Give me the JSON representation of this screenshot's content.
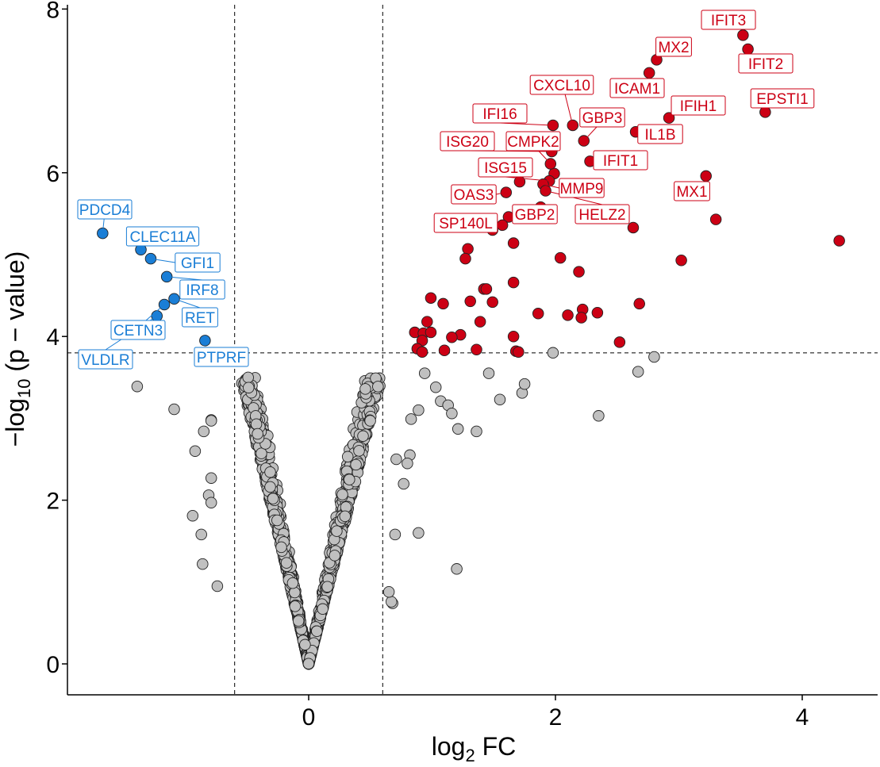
{
  "chart_data": {
    "type": "scatter",
    "title": "",
    "xlabel": "log2 FC",
    "ylabel": "-log10 (p - value)",
    "xlim": [
      -1.95,
      4.6
    ],
    "ylim": [
      -0.95,
      8.1
    ],
    "x_ticks": [
      0,
      2,
      4
    ],
    "y_ticks": [
      0,
      2,
      4,
      6,
      8
    ],
    "fc_threshold": [
      -0.6,
      0.6
    ],
    "p_threshold": 3.8,
    "grid": false,
    "legend": "none",
    "colors": {
      "up": "#cc0014",
      "down": "#1a7ed6",
      "ns": "#c0c0c0",
      "outline": "#222222"
    },
    "labeled_down": [
      {
        "gene": "PDCD4",
        "x": -1.67,
        "y": 5.26
      },
      {
        "gene": "CLEC11A",
        "x": -1.36,
        "y": 5.06
      },
      {
        "gene": "GFI1",
        "x": -1.28,
        "y": 4.95
      },
      {
        "gene": "IRF8",
        "x": -1.15,
        "y": 4.73
      },
      {
        "gene": "RET",
        "x": -1.09,
        "y": 4.46
      },
      {
        "gene": "CETN3",
        "x": -1.17,
        "y": 4.39
      },
      {
        "gene": "VLDLR",
        "x": -1.23,
        "y": 4.25
      },
      {
        "gene": "PTPRF",
        "x": -0.84,
        "y": 3.95
      }
    ],
    "labeled_up": [
      {
        "gene": "IFIT3",
        "x": 3.52,
        "y": 7.68
      },
      {
        "gene": "IFIT2",
        "x": 3.56,
        "y": 7.51
      },
      {
        "gene": "MX2",
        "x": 2.82,
        "y": 7.38
      },
      {
        "gene": "ICAM1",
        "x": 2.76,
        "y": 7.22
      },
      {
        "gene": "EPSTI1",
        "x": 3.7,
        "y": 6.74
      },
      {
        "gene": "IFIH1",
        "x": 2.92,
        "y": 6.67
      },
      {
        "gene": "CXCL10",
        "x": 2.14,
        "y": 6.58
      },
      {
        "gene": "IFI16",
        "x": 1.98,
        "y": 6.58
      },
      {
        "gene": "GBP3",
        "x": 2.23,
        "y": 6.39
      },
      {
        "gene": "IL1B",
        "x": 2.65,
        "y": 6.5
      },
      {
        "gene": "ISG20",
        "x": 1.97,
        "y": 6.26
      },
      {
        "gene": "CMPK2",
        "x": 1.96,
        "y": 6.11
      },
      {
        "gene": "IFIT1",
        "x": 2.28,
        "y": 6.14
      },
      {
        "gene": "ISG15",
        "x": 1.95,
        "y": 5.9
      },
      {
        "gene": "MX1",
        "x": 3.22,
        "y": 5.96
      },
      {
        "gene": "MMP9",
        "x": 1.9,
        "y": 5.86
      },
      {
        "gene": "OAS3",
        "x": 1.6,
        "y": 5.76
      },
      {
        "gene": "GBP2",
        "x": 1.88,
        "y": 5.58
      },
      {
        "gene": "HELZ2",
        "x": 1.92,
        "y": 5.78
      },
      {
        "gene": "SP140L",
        "x": 1.57,
        "y": 5.36
      }
    ],
    "unlabeled_up": [
      [
        1.71,
        5.89
      ],
      [
        1.99,
        5.99
      ],
      [
        1.62,
        5.46
      ],
      [
        3.3,
        5.43
      ],
      [
        2.63,
        5.33
      ],
      [
        1.49,
        5.3
      ],
      [
        4.3,
        5.17
      ],
      [
        1.66,
        5.14
      ],
      [
        1.29,
        5.07
      ],
      [
        1.27,
        4.95
      ],
      [
        2.04,
        4.96
      ],
      [
        3.02,
        4.93
      ],
      [
        2.19,
        4.79
      ],
      [
        1.42,
        4.58
      ],
      [
        1.44,
        4.58
      ],
      [
        1.66,
        4.66
      ],
      [
        0.99,
        4.47
      ],
      [
        1.09,
        4.4
      ],
      [
        1.31,
        4.43
      ],
      [
        1.49,
        4.42
      ],
      [
        2.68,
        4.4
      ],
      [
        2.22,
        4.33
      ],
      [
        2.34,
        4.29
      ],
      [
        1.86,
        4.28
      ],
      [
        2.1,
        4.26
      ],
      [
        2.21,
        4.23
      ],
      [
        0.96,
        4.18
      ],
      [
        1.39,
        4.18
      ],
      [
        0.86,
        4.05
      ],
      [
        0.93,
        4.04
      ],
      [
        0.99,
        4.05
      ],
      [
        1.23,
        4.02
      ],
      [
        1.16,
        3.99
      ],
      [
        1.66,
        4.0
      ],
      [
        0.92,
        3.95
      ],
      [
        2.52,
        3.93
      ],
      [
        0.88,
        3.85
      ],
      [
        1.36,
        3.84
      ],
      [
        1.1,
        3.83
      ],
      [
        1.68,
        3.82
      ],
      [
        1.7,
        3.81
      ],
      [
        0.92,
        3.81
      ]
    ]
  }
}
